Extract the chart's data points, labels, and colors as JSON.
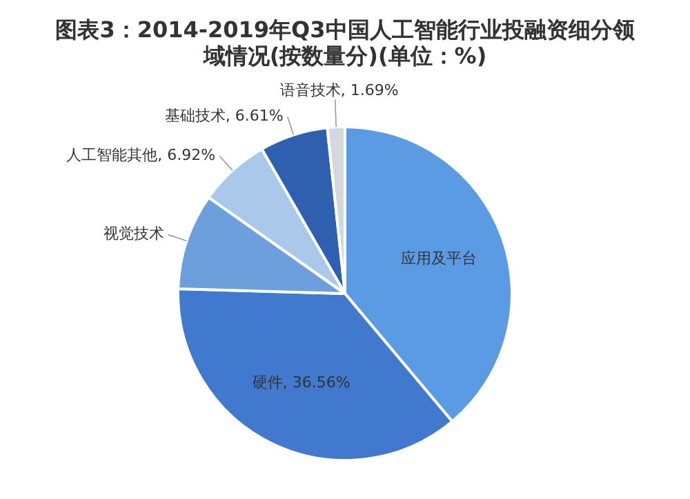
{
  "chart_data": {
    "type": "pie",
    "title": "图表3：2014-2019年Q3中国人工智能行业投融资细分领域情况(按数量分)(单位：%)",
    "categories": [
      "应用及平台",
      "硬件",
      "视觉技术",
      "人工智能其他",
      "基础技术",
      "语音技术"
    ],
    "values": [
      38.9,
      36.56,
      9.32,
      6.92,
      6.61,
      1.69
    ],
    "colors": [
      "#5b9be3",
      "#4179cf",
      "#6c9fdc",
      "#a9c8ea",
      "#2f5faf",
      "#d3d8de"
    ],
    "value_labels": [
      null,
      "36.56%",
      null,
      "6.92%",
      "6.61%",
      "1.69%"
    ],
    "legend": false
  }
}
